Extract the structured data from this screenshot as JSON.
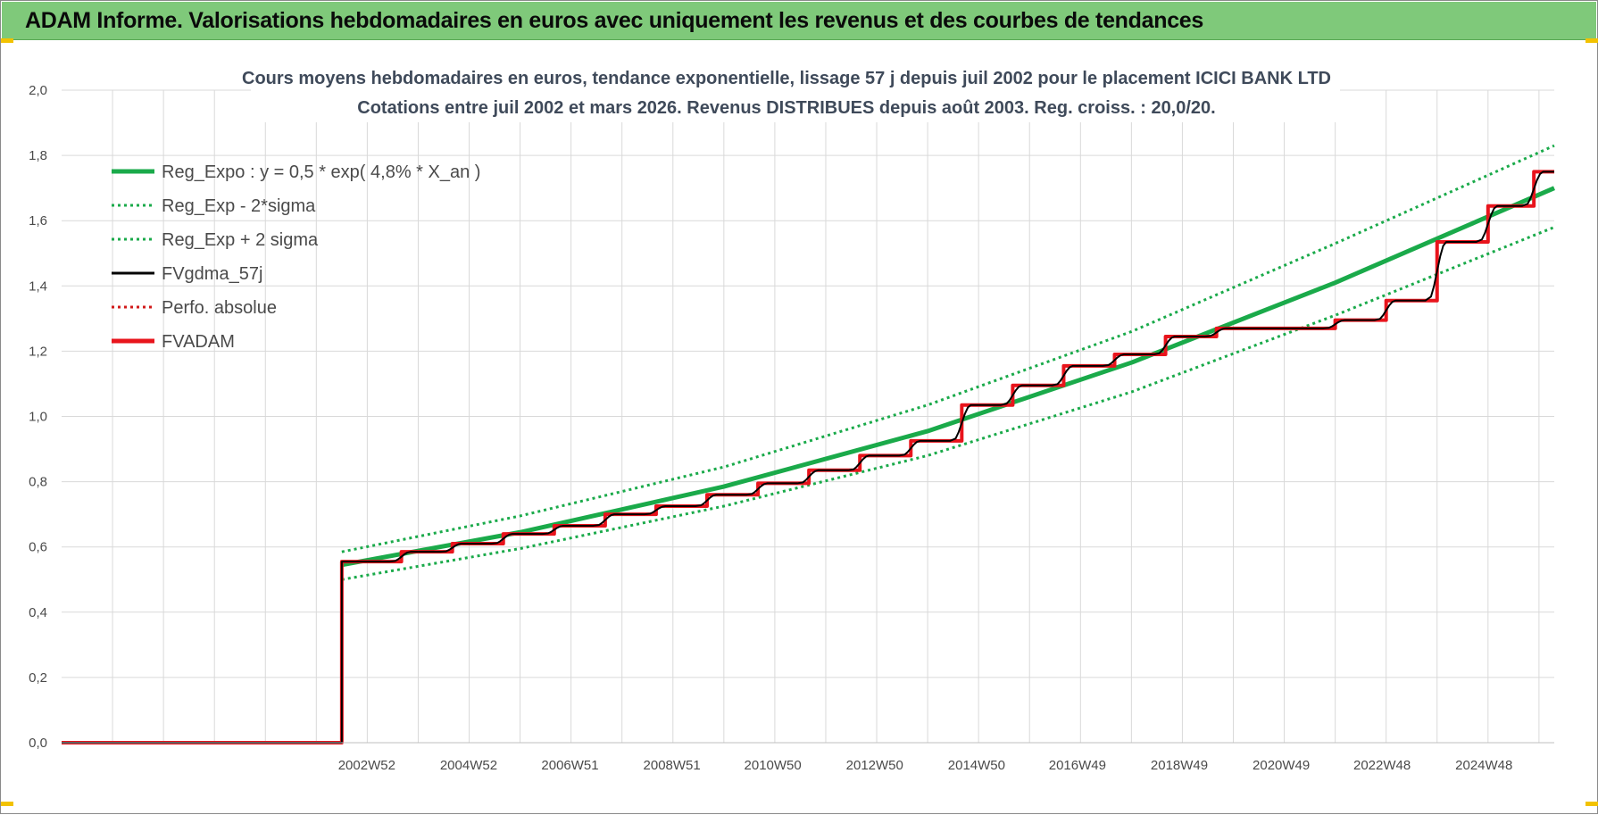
{
  "banner": {
    "title": "ADAM Informe. Valorisations hebdomadaires en euros avec uniquement les revenus et des courbes de tendances"
  },
  "chart_data": {
    "type": "line",
    "title_lines": [
      "Cours moyens hebdomadaires en euros, tendance exponentielle, lissage 57 j depuis juil 2002 pour le placement ICICI BANK LTD",
      "Cotations entre juil 2002 et mars 2026. Revenus DISTRIBUES depuis août 2003. Reg. croiss. : 20,0/20."
    ],
    "xlabel": "",
    "ylabel": "",
    "ylim": [
      0,
      2.0
    ],
    "y_ticks": [
      "0,0",
      "0,2",
      "0,4",
      "0,6",
      "0,8",
      "1,0",
      "1,2",
      "1,4",
      "1,6",
      "1,8",
      "2,0"
    ],
    "x_range": [
      1997.0,
      2026.3
    ],
    "x_ticks": [
      {
        "label": "2002W52",
        "x": 2002.99
      },
      {
        "label": "2004W52",
        "x": 2004.99
      },
      {
        "label": "2006W51",
        "x": 2006.98
      },
      {
        "label": "2008W51",
        "x": 2008.98
      },
      {
        "label": "2010W50",
        "x": 2010.96
      },
      {
        "label": "2012W50",
        "x": 2012.96
      },
      {
        "label": "2014W50",
        "x": 2014.96
      },
      {
        "label": "2016W49",
        "x": 2016.94
      },
      {
        "label": "2018W49",
        "x": 2018.94
      },
      {
        "label": "2020W49",
        "x": 2020.94
      },
      {
        "label": "2022W48",
        "x": 2022.92
      },
      {
        "label": "2024W48",
        "x": 2024.92
      }
    ],
    "grid": true,
    "legend_position": "top-left",
    "series": [
      {
        "name": "Reg_Expo : y = 0,5 * exp( 4,8% *  X_an )",
        "style": "solid",
        "color": "#1aaa4a",
        "x": [
          2002.5,
          2006.0,
          2010.0,
          2014.0,
          2018.0,
          2022.0,
          2026.3
        ],
        "y": [
          0.545,
          0.645,
          0.785,
          0.955,
          1.165,
          1.41,
          1.7
        ]
      },
      {
        "name": "Reg_Exp - 2*sigma",
        "style": "dotted",
        "color": "#1aaa4a",
        "x": [
          2002.5,
          2006.0,
          2010.0,
          2014.0,
          2018.0,
          2022.0,
          2026.3
        ],
        "y": [
          0.5,
          0.595,
          0.725,
          0.88,
          1.075,
          1.31,
          1.58
        ]
      },
      {
        "name": "Reg_Exp + 2 sigma",
        "style": "dotted",
        "color": "#1aaa4a",
        "x": [
          2002.5,
          2006.0,
          2010.0,
          2014.0,
          2018.0,
          2022.0,
          2026.3
        ],
        "y": [
          0.585,
          0.695,
          0.845,
          1.035,
          1.26,
          1.53,
          1.83
        ]
      },
      {
        "name": "FVgdma_57j",
        "style": "solid",
        "color": "#000000",
        "x": [
          1997.0,
          2002.5,
          2002.5,
          2026.3
        ],
        "y": [
          0.0,
          0.0,
          0.555,
          1.745
        ]
      },
      {
        "name": "Perfo. absolue",
        "style": "dotted",
        "color": "#d11a1a",
        "x": [
          1997.0,
          2002.5
        ],
        "y": [
          0.0,
          0.0
        ]
      },
      {
        "name": "FVADAM",
        "style": "solid",
        "color": "#e8141c",
        "x": [
          1997.0,
          2002.5,
          2002.5,
          2026.3
        ],
        "y": [
          0.0,
          0.0,
          0.555,
          1.745
        ],
        "steps": [
          {
            "x": 2003.67,
            "y": 0.585
          },
          {
            "x": 2004.67,
            "y": 0.61
          },
          {
            "x": 2005.67,
            "y": 0.64
          },
          {
            "x": 2006.67,
            "y": 0.665
          },
          {
            "x": 2007.67,
            "y": 0.7
          },
          {
            "x": 2008.67,
            "y": 0.725
          },
          {
            "x": 2009.67,
            "y": 0.76
          },
          {
            "x": 2010.67,
            "y": 0.795
          },
          {
            "x": 2011.67,
            "y": 0.835
          },
          {
            "x": 2012.67,
            "y": 0.88
          },
          {
            "x": 2013.67,
            "y": 0.925
          },
          {
            "x": 2014.67,
            "y": 1.035
          },
          {
            "x": 2015.67,
            "y": 1.095
          },
          {
            "x": 2016.67,
            "y": 1.155
          },
          {
            "x": 2017.67,
            "y": 1.19
          },
          {
            "x": 2018.67,
            "y": 1.245
          },
          {
            "x": 2019.67,
            "y": 1.27
          },
          {
            "x": 2022.0,
            "y": 1.295
          },
          {
            "x": 2023.0,
            "y": 1.355
          },
          {
            "x": 2024.0,
            "y": 1.535
          },
          {
            "x": 2025.0,
            "y": 1.645
          },
          {
            "x": 2025.9,
            "y": 1.75
          }
        ]
      }
    ]
  }
}
